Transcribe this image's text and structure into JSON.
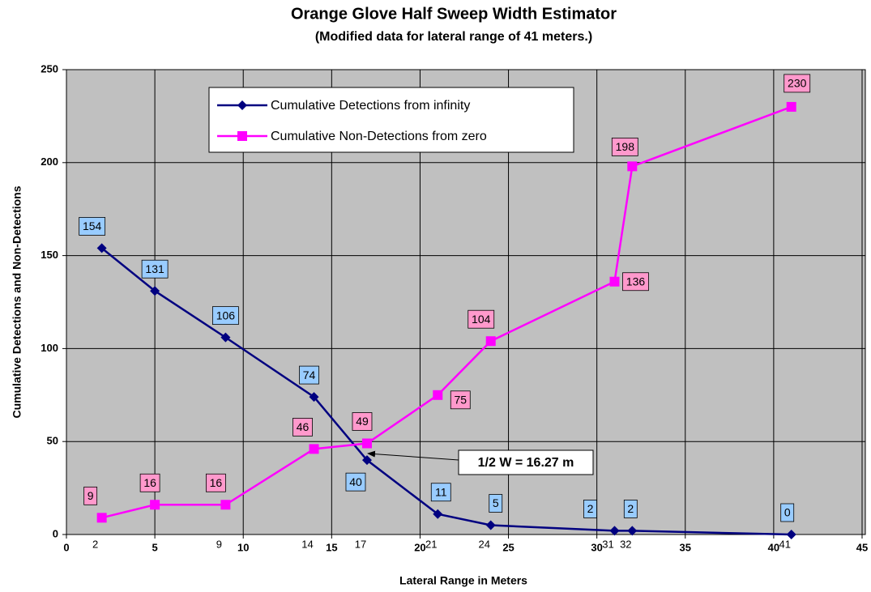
{
  "chart_data": {
    "type": "line",
    "title": "Orange Glove Half Sweep Width Estimator",
    "subtitle": "(Modified data for lateral range of 41 meters.)",
    "x_label": "Lateral Range in Meters",
    "y_label": "Cumulative Detections and Non-Detections",
    "x": [
      2,
      5,
      9,
      14,
      17,
      21,
      24,
      31,
      32,
      41
    ],
    "x_annotations": [
      2,
      9,
      14,
      17,
      21,
      24,
      31,
      32,
      41
    ],
    "series": [
      {
        "name": "Cumulative Detections from infinity",
        "color": "#000080",
        "marker": "diamond",
        "label_color": "#99ccff",
        "values": [
          154,
          131,
          106,
          74,
          40,
          11,
          5,
          2,
          2,
          0
        ]
      },
      {
        "name": "Cumulative Non-Detections from zero",
        "color": "#ff00ff",
        "marker": "square",
        "label_color": "#ff99cc",
        "values": [
          9,
          16,
          16,
          46,
          49,
          75,
          104,
          136,
          198,
          230
        ]
      }
    ],
    "annotation": "1/2 W = 16.27 m",
    "xlim": [
      0,
      45
    ],
    "xticks": [
      0,
      5,
      10,
      15,
      20,
      25,
      30,
      35,
      40,
      45
    ],
    "ylim": [
      0,
      250
    ],
    "yticks": [
      0,
      50,
      100,
      150,
      200,
      250
    ],
    "grid": true,
    "legend": "upper center",
    "plot_background": "#c0c0c0"
  }
}
